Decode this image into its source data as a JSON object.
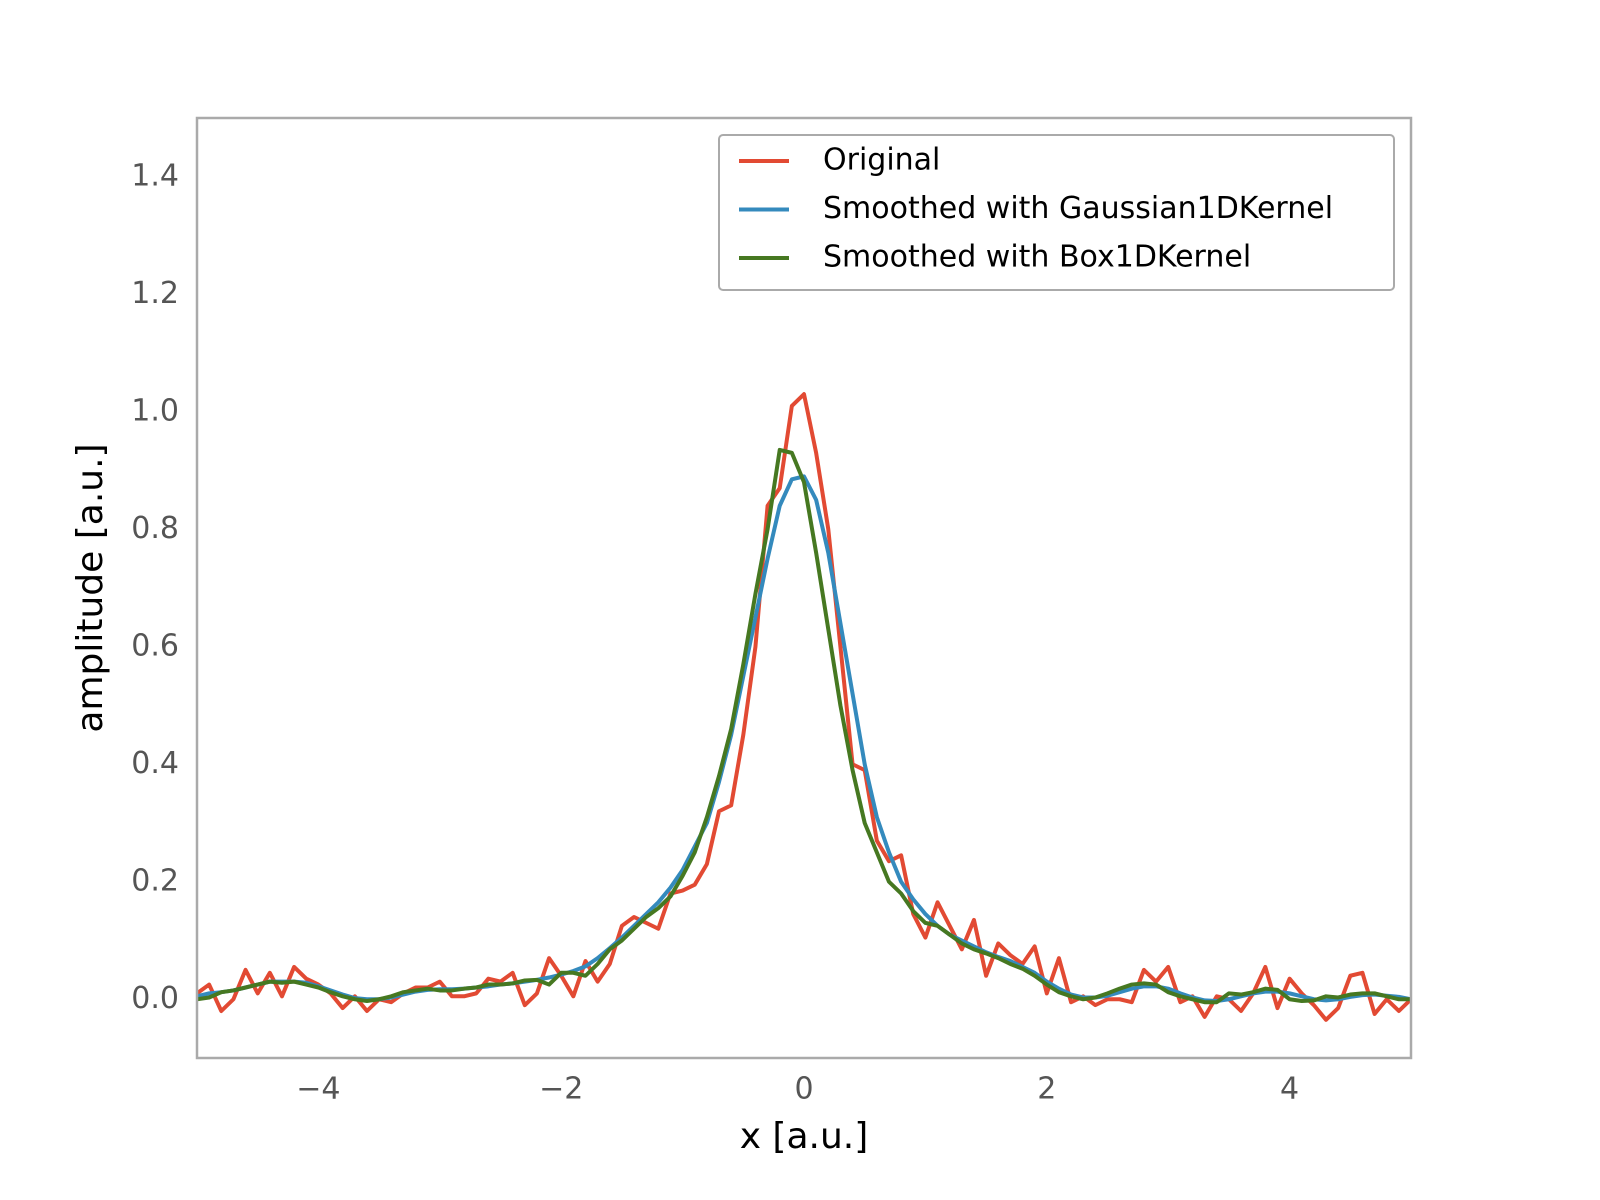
{
  "chart_data": {
    "type": "line",
    "xlabel": "x [a.u.]",
    "ylabel": "amplitude [a.u.]",
    "xlim": [
      -5,
      5
    ],
    "ylim": [
      -0.1,
      1.5
    ],
    "xticks": [
      {
        "value": -4,
        "label": "−4"
      },
      {
        "value": -2,
        "label": "−2"
      },
      0,
      2,
      4
    ],
    "yticks": [
      {
        "value": 0,
        "label": "0.0"
      },
      0.2,
      0.4,
      0.6,
      0.8,
      {
        "value": 1,
        "label": "1.0"
      },
      1.2,
      1.4
    ],
    "grid": false,
    "legend": "upper right",
    "x": [
      -5,
      -4.9,
      -4.8,
      -4.7,
      -4.6,
      -4.5,
      -4.4,
      -4.3,
      -4.2,
      -4.1,
      -4,
      -3.9,
      -3.8,
      -3.7,
      -3.6,
      -3.5,
      -3.4,
      -3.3,
      -3.2,
      -3.1,
      -3,
      -2.9,
      -2.8,
      -2.7,
      -2.6,
      -2.5,
      -2.4,
      -2.3,
      -2.2,
      -2.1,
      -2,
      -1.9,
      -1.8,
      -1.7,
      -1.6,
      -1.5,
      -1.4,
      -1.3,
      -1.2,
      -1.1,
      -1,
      -0.9,
      -0.8,
      -0.7,
      -0.6,
      -0.5,
      -0.4,
      -0.3,
      -0.2,
      -0.1,
      0,
      0.1,
      0.2,
      0.3,
      0.4,
      0.5,
      0.6,
      0.7,
      0.8,
      0.9,
      1,
      1.1,
      1.2,
      1.3,
      1.4,
      1.5,
      1.6,
      1.7,
      1.8,
      1.9,
      2,
      2.1,
      2.2,
      2.3,
      2.4,
      2.5,
      2.6,
      2.7,
      2.8,
      2.9,
      3,
      3.1,
      3.2,
      3.3,
      3.4,
      3.5,
      3.6,
      3.7,
      3.8,
      3.9,
      4,
      4.1,
      4.2,
      4.3,
      4.4,
      4.5,
      4.6,
      4.7,
      4.8,
      4.9,
      5
    ],
    "series": [
      {
        "name": "Original",
        "color": "#e24a33",
        "values": [
          0.01,
          0.025,
          -0.02,
          0.0,
          0.05,
          0.01,
          0.045,
          0.005,
          0.055,
          0.035,
          0.025,
          0.01,
          -0.015,
          0.005,
          -0.02,
          0.0,
          -0.005,
          0.01,
          0.02,
          0.02,
          0.03,
          0.005,
          0.005,
          0.01,
          0.035,
          0.03,
          0.045,
          -0.01,
          0.01,
          0.07,
          0.04,
          0.005,
          0.065,
          0.03,
          0.06,
          0.125,
          0.14,
          0.13,
          0.12,
          0.18,
          0.185,
          0.195,
          0.23,
          0.32,
          0.33,
          0.45,
          0.6,
          0.84,
          0.87,
          1.01,
          1.03,
          0.93,
          0.8,
          0.6,
          0.4,
          0.39,
          0.27,
          0.235,
          0.245,
          0.145,
          0.105,
          0.165,
          0.125,
          0.085,
          0.135,
          0.04,
          0.095,
          0.075,
          0.06,
          0.09,
          0.01,
          0.07,
          -0.005,
          0.005,
          -0.01,
          0.0,
          0.0,
          -0.005,
          0.05,
          0.03,
          0.055,
          -0.005,
          0.005,
          -0.03,
          0.005,
          0.0,
          -0.02,
          0.01,
          0.055,
          -0.015,
          0.035,
          0.01,
          -0.01,
          -0.035,
          -0.015,
          0.04,
          0.045,
          -0.025,
          0.0,
          -0.02,
          0.0
        ]
      },
      {
        "name": "Smoothed with Gaussian1DKernel",
        "color": "#348abd",
        "values": [
          0.005,
          0.01,
          0.012,
          0.015,
          0.02,
          0.025,
          0.03,
          0.03,
          0.03,
          0.028,
          0.022,
          0.015,
          0.008,
          0.002,
          0.0,
          0.0,
          0.003,
          0.008,
          0.013,
          0.016,
          0.017,
          0.017,
          0.018,
          0.02,
          0.022,
          0.025,
          0.027,
          0.03,
          0.033,
          0.037,
          0.042,
          0.048,
          0.056,
          0.07,
          0.087,
          0.105,
          0.125,
          0.145,
          0.165,
          0.19,
          0.22,
          0.26,
          0.3,
          0.37,
          0.45,
          0.55,
          0.65,
          0.75,
          0.84,
          0.885,
          0.89,
          0.85,
          0.76,
          0.64,
          0.52,
          0.4,
          0.31,
          0.25,
          0.2,
          0.17,
          0.145,
          0.125,
          0.11,
          0.1,
          0.09,
          0.08,
          0.072,
          0.065,
          0.055,
          0.045,
          0.03,
          0.018,
          0.008,
          0.003,
          0.003,
          0.006,
          0.012,
          0.018,
          0.022,
          0.022,
          0.018,
          0.01,
          0.003,
          -0.002,
          -0.003,
          0.0,
          0.005,
          0.01,
          0.013,
          0.013,
          0.01,
          0.005,
          0.0,
          -0.002,
          0.0,
          0.004,
          0.007,
          0.008,
          0.006,
          0.004,
          0.0
        ]
      },
      {
        "name": "Smoothed with Box1DKernel",
        "color": "#467821",
        "values": [
          0.0,
          0.003,
          0.012,
          0.015,
          0.02,
          0.025,
          0.03,
          0.028,
          0.03,
          0.025,
          0.02,
          0.012,
          0.005,
          0.0,
          -0.003,
          0.0,
          0.005,
          0.012,
          0.015,
          0.018,
          0.015,
          0.015,
          0.018,
          0.02,
          0.025,
          0.025,
          0.027,
          0.032,
          0.033,
          0.025,
          0.045,
          0.045,
          0.04,
          0.06,
          0.085,
          0.1,
          0.12,
          0.14,
          0.155,
          0.175,
          0.21,
          0.25,
          0.31,
          0.38,
          0.46,
          0.57,
          0.69,
          0.8,
          0.935,
          0.93,
          0.88,
          0.76,
          0.63,
          0.5,
          0.39,
          0.3,
          0.25,
          0.2,
          0.18,
          0.15,
          0.13,
          0.125,
          0.11,
          0.095,
          0.085,
          0.078,
          0.07,
          0.06,
          0.052,
          0.04,
          0.025,
          0.012,
          0.005,
          0.0,
          0.003,
          0.01,
          0.018,
          0.025,
          0.027,
          0.025,
          0.012,
          0.005,
          0.0,
          -0.005,
          -0.005,
          0.01,
          0.008,
          0.012,
          0.018,
          0.016,
          0.0,
          -0.003,
          -0.002,
          0.005,
          0.003,
          0.008,
          0.01,
          0.01,
          0.005,
          0.0,
          0.0
        ]
      }
    ]
  }
}
